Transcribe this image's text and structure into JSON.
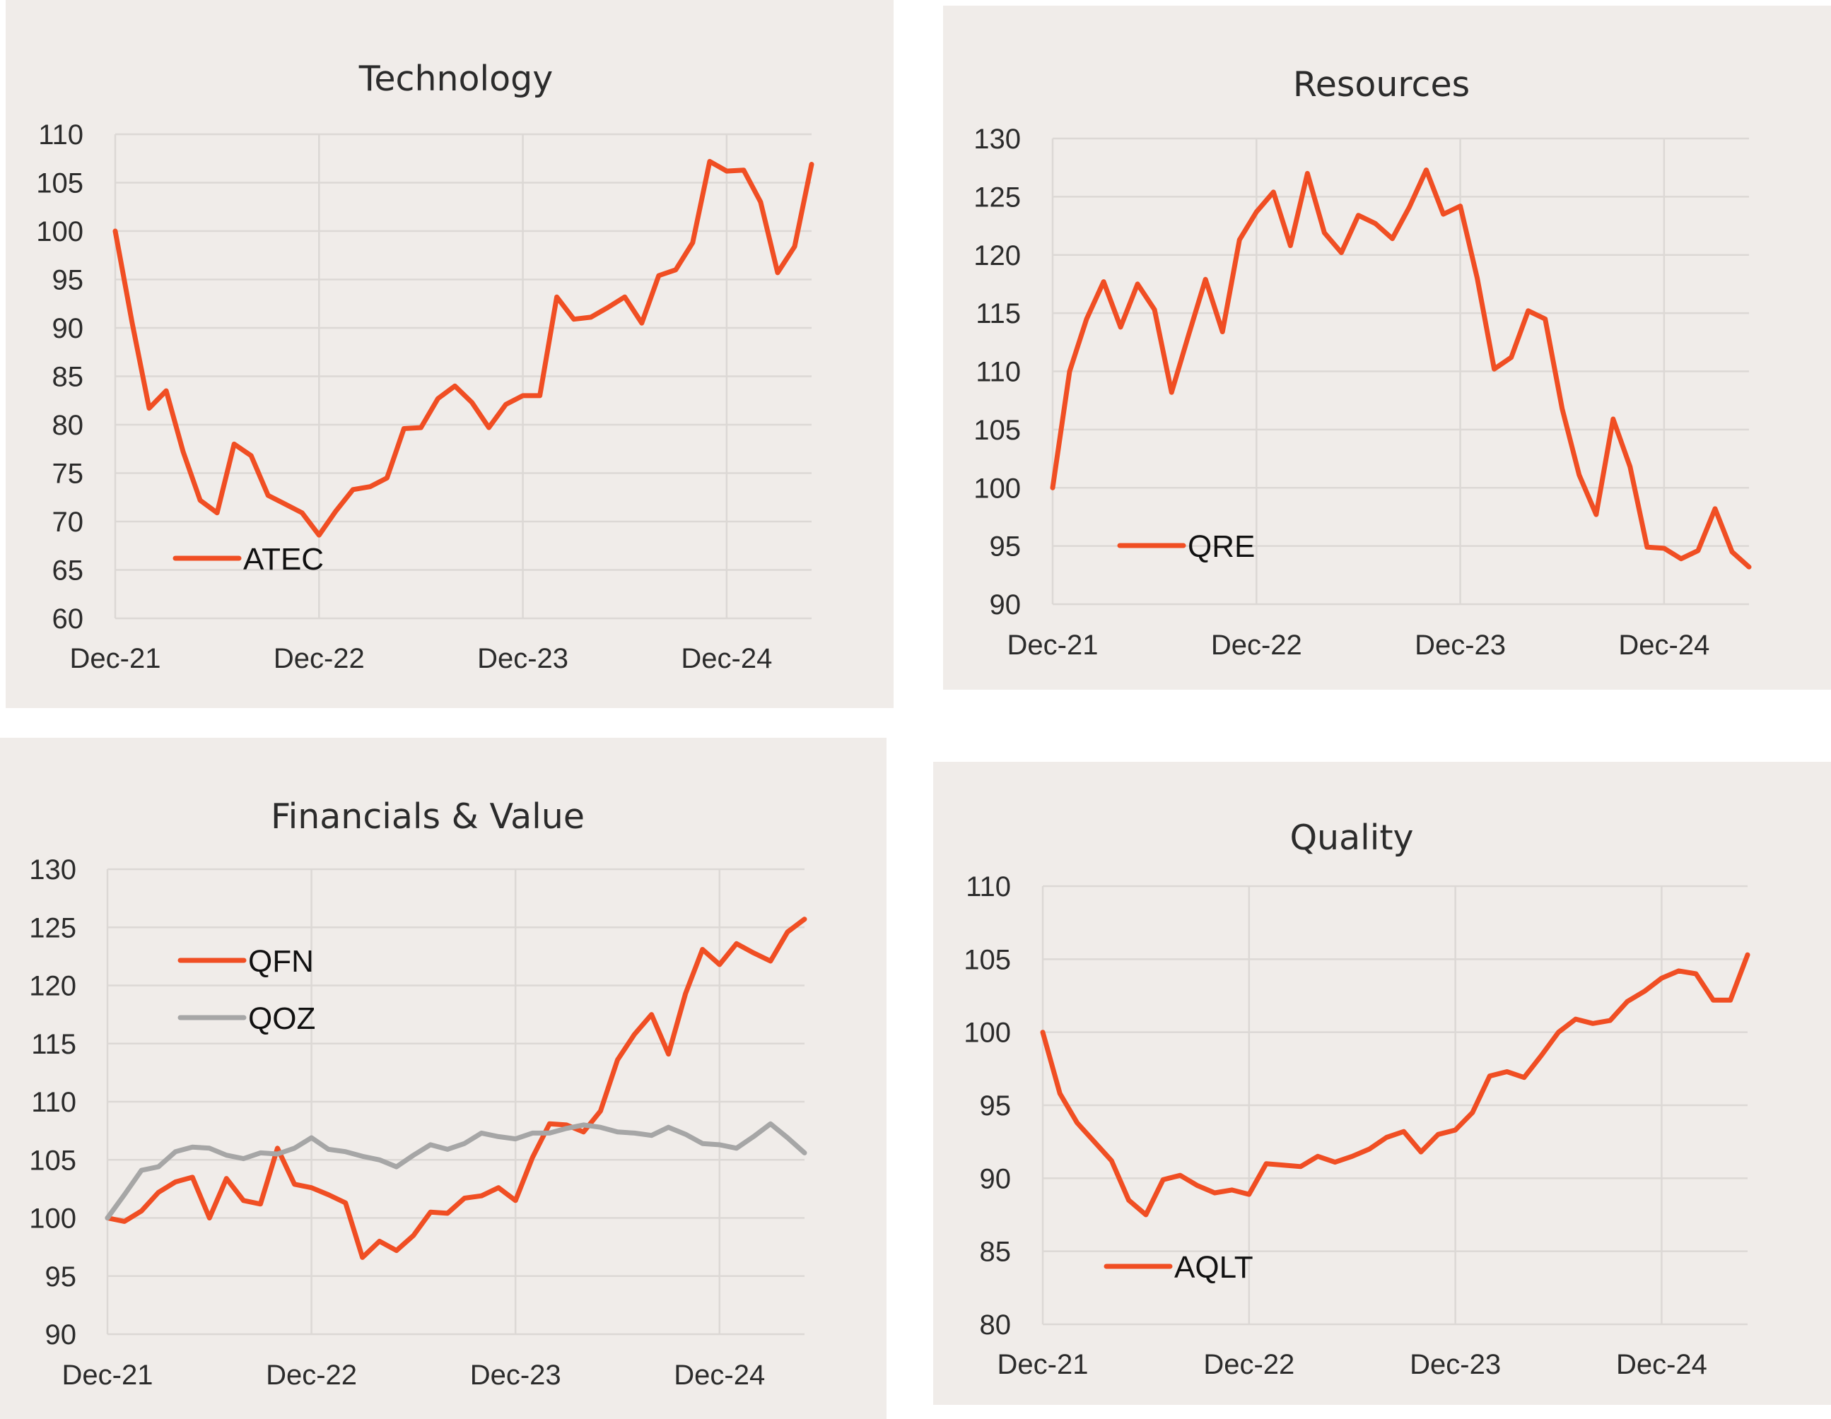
{
  "colors": {
    "primary": "#f04e23",
    "secondary": "#a6a6a6",
    "panel_bg": "#f0ece9",
    "grid": "#dcd8d5"
  },
  "chart_data": [
    {
      "type": "line",
      "title": "Technology",
      "xlabel": "",
      "ylabel": "",
      "x_tick_labels": [
        "Dec-21",
        "Dec-22",
        "Dec-23",
        "Dec-24"
      ],
      "x_tick_months": [
        0,
        12,
        24,
        36
      ],
      "x_range": [
        0,
        41
      ],
      "ylim": [
        60,
        110
      ],
      "ystep": 5,
      "grid": true,
      "legend": "bottom-left",
      "series": [
        {
          "name": "ATEC",
          "color": "#f04e23",
          "values": [
            100,
            90.5,
            81.7,
            83.5,
            77.2,
            72.2,
            70.9,
            78.0,
            76.8,
            72.7,
            71.8,
            70.9,
            68.6,
            71.1,
            73.3,
            73.6,
            74.5,
            79.6,
            79.7,
            82.7,
            84.0,
            82.3,
            79.7,
            82.1,
            83.0,
            83.0,
            93.2,
            90.9,
            91.1,
            92.1,
            93.2,
            90.5,
            95.4,
            96.0,
            98.8,
            107.2,
            106.2,
            106.3,
            103.0,
            95.7,
            98.4,
            106.9
          ]
        }
      ]
    },
    {
      "type": "line",
      "title": "Resources",
      "xlabel": "",
      "ylabel": "",
      "x_tick_labels": [
        "Dec-21",
        "Dec-22",
        "Dec-23",
        "Dec-24"
      ],
      "x_tick_months": [
        0,
        12,
        24,
        36
      ],
      "x_range": [
        0,
        41
      ],
      "ylim": [
        90,
        130
      ],
      "ystep": 5,
      "grid": true,
      "legend": "bottom-left",
      "series": [
        {
          "name": "QRE",
          "color": "#f04e23",
          "values": [
            100,
            110.0,
            114.5,
            117.7,
            113.8,
            117.5,
            115.3,
            108.2,
            113.1,
            117.9,
            113.4,
            121.3,
            123.7,
            125.4,
            120.8,
            127.0,
            121.9,
            120.2,
            123.4,
            122.7,
            121.4,
            124.1,
            127.3,
            123.5,
            124.2,
            118.0,
            110.2,
            111.2,
            115.2,
            114.5,
            106.8,
            101.1,
            97.7,
            105.9,
            101.8,
            94.9,
            94.8,
            93.9,
            94.6,
            98.2,
            94.5,
            93.2
          ]
        }
      ]
    },
    {
      "type": "line",
      "title": "Financials & Value",
      "xlabel": "",
      "ylabel": "",
      "x_tick_labels": [
        "Dec-21",
        "Dec-22",
        "Dec-23",
        "Dec-24"
      ],
      "x_tick_months": [
        0,
        12,
        24,
        36
      ],
      "x_range": [
        0,
        41
      ],
      "ylim": [
        90,
        130
      ],
      "ystep": 5,
      "grid": true,
      "legend": "top-left",
      "series": [
        {
          "name": "QFN",
          "color": "#f04e23",
          "values": [
            100,
            99.7,
            100.6,
            102.2,
            103.1,
            103.5,
            100.0,
            103.4,
            101.5,
            101.2,
            106.0,
            102.9,
            102.6,
            102.0,
            101.3,
            96.6,
            98.0,
            97.2,
            98.5,
            100.5,
            100.4,
            101.7,
            101.9,
            102.6,
            101.5,
            105.2,
            108.1,
            108.0,
            107.4,
            109.2,
            113.6,
            115.8,
            117.5,
            114.1,
            119.3,
            123.1,
            121.8,
            123.6,
            122.8,
            122.1,
            124.6,
            125.7
          ]
        },
        {
          "name": "QOZ",
          "color": "#a6a6a6",
          "values": [
            100,
            102.0,
            104.1,
            104.4,
            105.7,
            106.1,
            106.0,
            105.4,
            105.1,
            105.6,
            105.5,
            106.0,
            106.9,
            105.9,
            105.7,
            105.3,
            105.0,
            104.4,
            105.4,
            106.3,
            105.9,
            106.4,
            107.3,
            107.0,
            106.8,
            107.3,
            107.3,
            107.7,
            108.0,
            107.8,
            107.4,
            107.3,
            107.1,
            107.8,
            107.2,
            106.4,
            106.3,
            106.0,
            107.0,
            108.1,
            106.9,
            105.6
          ]
        }
      ]
    },
    {
      "type": "line",
      "title": "Quality",
      "xlabel": "",
      "ylabel": "",
      "x_tick_labels": [
        "Dec-21",
        "Dec-22",
        "Dec-23",
        "Dec-24"
      ],
      "x_tick_months": [
        0,
        12,
        24,
        36
      ],
      "x_range": [
        0,
        41
      ],
      "ylim": [
        80,
        110
      ],
      "ystep": 5,
      "grid": true,
      "legend": "bottom-left",
      "series": [
        {
          "name": "AQLT",
          "color": "#f04e23",
          "values": [
            100,
            95.8,
            93.8,
            92.5,
            91.2,
            88.5,
            87.5,
            89.9,
            90.2,
            89.5,
            89.0,
            89.2,
            88.9,
            91.0,
            90.9,
            90.8,
            91.5,
            91.1,
            91.5,
            92.0,
            92.8,
            93.2,
            91.8,
            93.0,
            93.3,
            94.5,
            97.0,
            97.3,
            96.9,
            98.4,
            100.0,
            100.9,
            100.6,
            100.8,
            102.1,
            102.8,
            103.7,
            104.2,
            104.0,
            102.2,
            102.2,
            105.3
          ]
        }
      ]
    }
  ]
}
